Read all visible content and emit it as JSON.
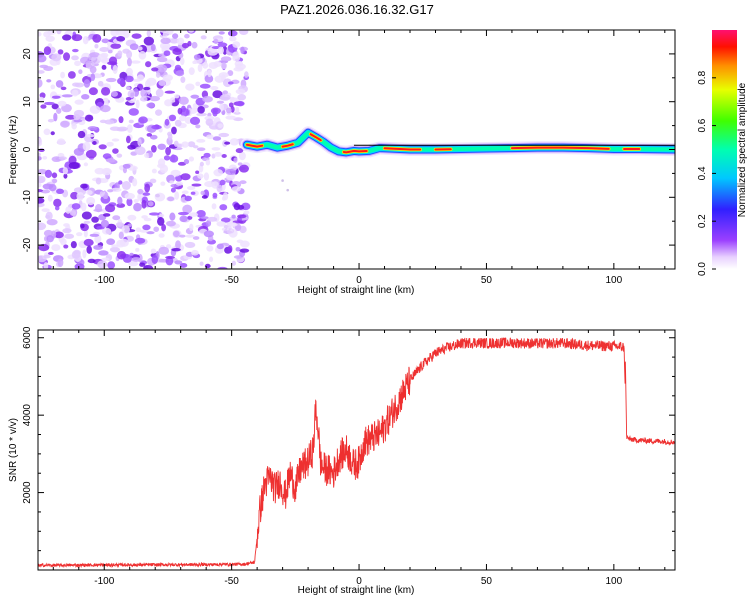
{
  "title": "PAZ1.2026.036.16.32.G17",
  "chart_data": [
    {
      "type": "heatmap",
      "xlabel": "Height of straight line (km)",
      "ylabel": "Frequency (Hz)",
      "xlim": [
        -126,
        124
      ],
      "ylim": [
        -25,
        25
      ],
      "xticks": [
        -100,
        -50,
        0,
        50,
        100
      ],
      "xtick_labels": [
        "-100",
        "-50",
        "0",
        "50",
        "100"
      ],
      "yticks": [
        -20,
        -10,
        0,
        10,
        20
      ],
      "ytick_labels": [
        "-20",
        "-10",
        "0",
        "10",
        "20"
      ],
      "noise_region_x": [
        -126,
        -44
      ],
      "signal_ridge": {
        "x": [
          -44,
          -40,
          -36,
          -32,
          -28,
          -24,
          -20,
          -17,
          -14,
          -11,
          -8,
          -5,
          -2,
          0,
          4,
          8,
          12,
          20,
          30,
          40,
          50,
          60,
          70,
          80,
          90,
          100,
          110,
          124
        ],
        "freq": [
          1.0,
          0.6,
          1.0,
          0.4,
          0.8,
          1.4,
          3.5,
          2.6,
          1.6,
          0.4,
          -0.4,
          -0.6,
          -0.3,
          -0.4,
          -0.3,
          0.3,
          0.2,
          0.0,
          0.0,
          0.1,
          0.2,
          0.3,
          0.4,
          0.4,
          0.3,
          0.1,
          0.1,
          0.0
        ]
      },
      "colorbar": {
        "label": "Normalized spectral amplitude",
        "range": [
          0,
          1
        ],
        "ticks": [
          0.0,
          0.2,
          0.4,
          0.6,
          0.8
        ],
        "tick_labels": [
          "0.0",
          "0.2",
          "0.4",
          "0.6",
          "0.8"
        ]
      }
    },
    {
      "type": "line",
      "xlabel": "Height of straight line (km)",
      "ylabel": "SNR (10 * v/v)",
      "xlim": [
        -126,
        124
      ],
      "ylim": [
        0,
        6200
      ],
      "xticks": [
        -100,
        -50,
        0,
        50,
        100
      ],
      "xtick_labels": [
        "-100",
        "-50",
        "0",
        "50",
        "100"
      ],
      "yticks": [
        2000,
        4000,
        6000
      ],
      "ytick_labels": [
        "2000",
        "4000",
        "6000"
      ],
      "color": "#ee3030",
      "series": [
        {
          "name": "SNR",
          "x": [
            -126,
            -100,
            -60,
            -45,
            -41,
            -39,
            -37,
            -35,
            -33,
            -31,
            -29,
            -27,
            -25,
            -23,
            -20,
            -18,
            -17,
            -16,
            -15,
            -13,
            -10,
            -8,
            -5,
            -2,
            0,
            2,
            5,
            8,
            10,
            15,
            20,
            25,
            30,
            35,
            40,
            45,
            50,
            60,
            70,
            80,
            90,
            100,
            104,
            105,
            106,
            110,
            120,
            124
          ],
          "y": [
            120,
            130,
            140,
            150,
            200,
            1500,
            2200,
            2400,
            2100,
            2300,
            1900,
            2500,
            2100,
            2600,
            2800,
            3100,
            4200,
            3600,
            2700,
            2600,
            2500,
            2900,
            3100,
            2700,
            2800,
            3300,
            3400,
            3500,
            3700,
            4300,
            4900,
            5300,
            5600,
            5750,
            5850,
            5880,
            5860,
            5870,
            5850,
            5860,
            5800,
            5780,
            5760,
            3450,
            3380,
            3350,
            3320,
            3300
          ]
        }
      ]
    }
  ]
}
